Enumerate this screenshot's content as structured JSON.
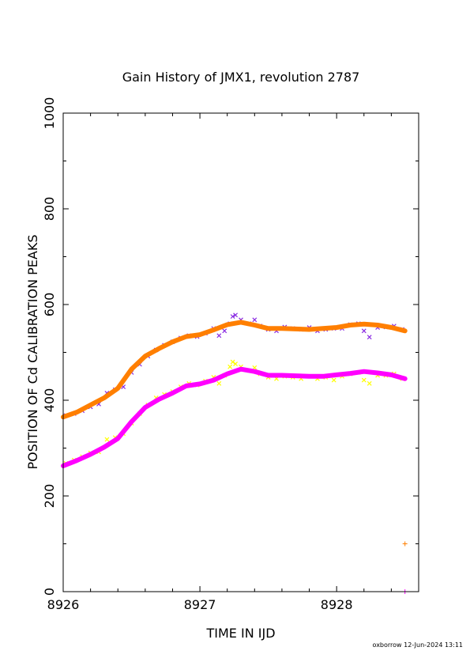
{
  "chart_data": {
    "type": "scatter",
    "title": "Gain History of JMX1, revolution 2787",
    "xlabel": "TIME IN IJD",
    "ylabel": "POSITION OF Cd CALIBRATION PEAKS",
    "xlim": [
      8926,
      8928.6
    ],
    "ylim": [
      0,
      1000
    ],
    "xticks": [
      8926,
      8927,
      8928
    ],
    "xtick_labels": [
      "8926",
      "8927",
      "8928"
    ],
    "yticks": [
      0,
      200,
      400,
      600,
      800,
      1000
    ],
    "ytick_labels": [
      "0",
      "200",
      "400",
      "600",
      "800",
      "1000"
    ],
    "grid": false,
    "footer": "oxborrow 12-Jun-2024 13:11",
    "series": [
      {
        "color": "#8a2be2",
        "marker": "x",
        "kind": "points",
        "x": [
          8926.02,
          8926.08,
          8926.14,
          8926.2,
          8926.26,
          8926.32,
          8926.38,
          8926.44,
          8926.5,
          8926.56,
          8926.62,
          8926.68,
          8926.74,
          8926.8,
          8926.86,
          8926.92,
          8926.98,
          8927.04,
          8927.1,
          8927.14,
          8927.18,
          8927.22,
          8927.24,
          8927.26,
          8927.3,
          8927.36,
          8927.4,
          8927.44,
          8927.5,
          8927.56,
          8927.62,
          8927.68,
          8927.74,
          8927.8,
          8927.86,
          8927.92,
          8927.98,
          8928.04,
          8928.1,
          8928.16,
          8928.2,
          8928.24,
          8928.3,
          8928.36,
          8928.42,
          8928.48
        ],
        "y": [
          368,
          372,
          378,
          386,
          392,
          415,
          422,
          428,
          458,
          475,
          492,
          505,
          515,
          522,
          530,
          535,
          533,
          540,
          550,
          535,
          545,
          560,
          575,
          578,
          568,
          560,
          568,
          555,
          548,
          545,
          553,
          550,
          548,
          552,
          545,
          548,
          550,
          550,
          558,
          560,
          545,
          532,
          552,
          553,
          555,
          548
        ]
      },
      {
        "color": "#ff7f00",
        "marker": "line",
        "kind": "fit",
        "x": [
          8926.0,
          8926.1,
          8926.2,
          8926.3,
          8926.4,
          8926.5,
          8926.6,
          8926.7,
          8926.8,
          8926.9,
          8927.0,
          8927.1,
          8927.2,
          8927.3,
          8927.4,
          8927.5,
          8927.6,
          8927.7,
          8927.8,
          8927.9,
          8928.0,
          8928.1,
          8928.2,
          8928.3,
          8928.4,
          8928.5
        ],
        "y": [
          365,
          375,
          390,
          405,
          425,
          465,
          492,
          508,
          522,
          533,
          537,
          547,
          558,
          563,
          557,
          550,
          550,
          549,
          548,
          550,
          552,
          557,
          559,
          557,
          552,
          545
        ]
      },
      {
        "color": "#ffff00",
        "marker": "x",
        "kind": "points",
        "x": [
          8926.02,
          8926.08,
          8926.14,
          8926.2,
          8926.26,
          8926.32,
          8926.38,
          8926.44,
          8926.5,
          8926.56,
          8926.62,
          8926.68,
          8926.74,
          8926.8,
          8926.86,
          8926.92,
          8926.98,
          8927.04,
          8927.1,
          8927.14,
          8927.18,
          8927.22,
          8927.24,
          8927.26,
          8927.3,
          8927.36,
          8927.4,
          8927.44,
          8927.5,
          8927.56,
          8927.62,
          8927.68,
          8927.74,
          8927.8,
          8927.86,
          8927.92,
          8927.98,
          8928.04,
          8928.1,
          8928.16,
          8928.2,
          8928.24,
          8928.3,
          8928.36,
          8928.42,
          8928.48
        ],
        "y": [
          268,
          275,
          282,
          290,
          292,
          318,
          322,
          330,
          352,
          372,
          390,
          405,
          412,
          418,
          428,
          435,
          432,
          440,
          448,
          435,
          452,
          470,
          480,
          476,
          470,
          462,
          468,
          455,
          448,
          445,
          450,
          448,
          445,
          450,
          445,
          448,
          442,
          450,
          455,
          458,
          442,
          435,
          452,
          452,
          455,
          445
        ]
      },
      {
        "color": "#ff00ff",
        "marker": "line",
        "kind": "fit",
        "x": [
          8926.0,
          8926.1,
          8926.2,
          8926.3,
          8926.4,
          8926.5,
          8926.6,
          8926.7,
          8926.8,
          8926.9,
          8927.0,
          8927.1,
          8927.2,
          8927.3,
          8927.4,
          8927.5,
          8927.6,
          8927.7,
          8927.8,
          8927.9,
          8928.0,
          8928.1,
          8928.2,
          8928.3,
          8928.4,
          8928.5
        ],
        "y": [
          263,
          274,
          287,
          302,
          320,
          355,
          385,
          402,
          415,
          430,
          434,
          442,
          455,
          465,
          460,
          452,
          452,
          451,
          450,
          450,
          453,
          456,
          460,
          457,
          453,
          445
        ]
      },
      {
        "color": "#ff7f00",
        "marker": "plus",
        "kind": "points",
        "x": [
          8928.5
        ],
        "y": [
          100
        ]
      },
      {
        "color": "#ff00ff",
        "marker": "plus",
        "kind": "points",
        "x": [
          8928.5
        ],
        "y": [
          0
        ]
      }
    ]
  }
}
